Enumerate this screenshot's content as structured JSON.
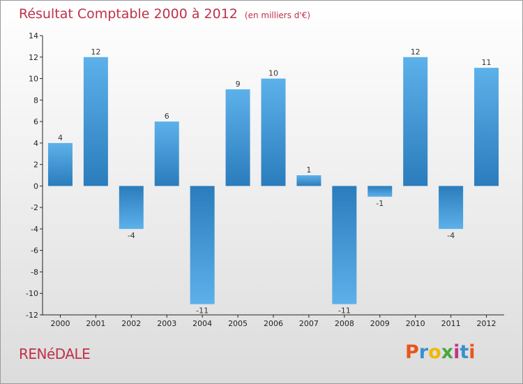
{
  "title": "Résultat Comptable 2000 à 2012",
  "subtitle": "(en milliers d'€)",
  "town": "RENéDALE",
  "logo": {
    "letters": [
      "P",
      "r",
      "o",
      "x",
      "i",
      "t",
      "i"
    ],
    "colors": [
      "#e8551e",
      "#3a8fd0",
      "#f2b800",
      "#48a83c",
      "#c23585",
      "#3a8fd0",
      "#e8551e"
    ]
  },
  "colors": {
    "accent": "#c0304a",
    "bar_top": "#5db1ea",
    "bar_bottom": "#2a7cbc"
  },
  "chart_data": {
    "type": "bar",
    "title": "Résultat Comptable 2000 à 2012",
    "ylabel": "en milliers d'€",
    "categories": [
      "2000",
      "2001",
      "2002",
      "2003",
      "2004",
      "2005",
      "2006",
      "2007",
      "2008",
      "2009",
      "2010",
      "2011",
      "2012"
    ],
    "values": [
      4,
      12,
      -4,
      6,
      -11,
      9,
      10,
      1,
      -11,
      -1,
      12,
      -4,
      11
    ],
    "value_labels": [
      "4",
      "12",
      "-4",
      "6",
      "-11",
      "9",
      "10",
      "1",
      "-11",
      "-1",
      "12",
      "-4",
      "11"
    ],
    "ylim": [
      -12,
      14
    ],
    "yticks": [
      14,
      12,
      10,
      8,
      6,
      4,
      2,
      0,
      -2,
      -4,
      -6,
      -8,
      -10,
      -12
    ],
    "ytick_labels": [
      "14",
      "12",
      "10",
      "8",
      "6",
      "4",
      "2",
      "0",
      "-2",
      "-4",
      "-6",
      "-8",
      "-10",
      "-12"
    ],
    "grid": false
  }
}
